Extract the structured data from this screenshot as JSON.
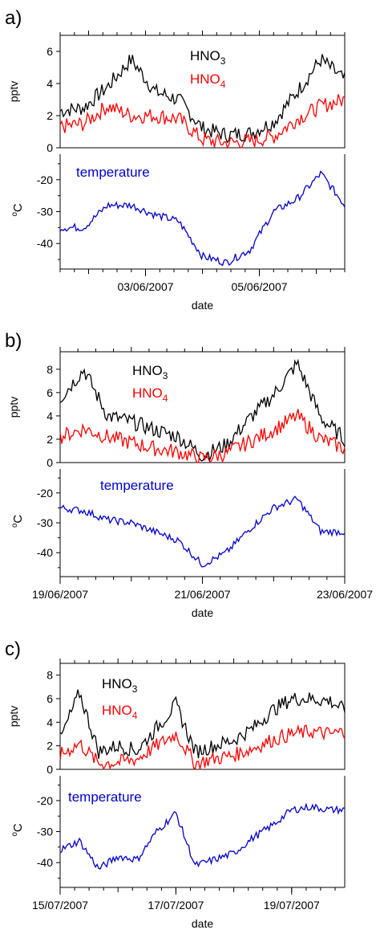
{
  "chart_data": [
    {
      "panel_label": "a)",
      "type": "line",
      "x_unit": "date",
      "xlabel": "date",
      "xlim": [
        "2007-06-01T12:00",
        "2007-06-06T12:00"
      ],
      "x_tick_labels": [
        {
          "date": "2007-06-03T00:00",
          "label": "03/06/2007"
        },
        {
          "date": "2007-06-05T00:00",
          "label": "05/06/2007"
        }
      ],
      "top": {
        "ylabel": "pptv",
        "ylim": [
          0,
          7
        ],
        "yticks": [
          0,
          2,
          4,
          6
        ],
        "series": [
          {
            "name": "HNO3",
            "label_main": "HNO",
            "label_sub": "3",
            "color": "#000000",
            "x": [
              "2007-06-01T12:00",
              "2007-06-01T22:00",
              "2007-06-02T08:00",
              "2007-06-02T18:00",
              "2007-06-03T04:00",
              "2007-06-03T14:00",
              "2007-06-04T00:00",
              "2007-06-04T10:00",
              "2007-06-04T20:00",
              "2007-06-05T06:00",
              "2007-06-05T16:00",
              "2007-06-06T02:00",
              "2007-06-06T12:00"
            ],
            "y": [
              2.3,
              2.5,
              3.8,
              5.5,
              3.5,
              3.0,
              1.2,
              0.8,
              0.9,
              1.6,
              3.5,
              5.5,
              4.2
            ]
          },
          {
            "name": "HNO4",
            "label_main": "HNO",
            "label_sub": "4",
            "color": "#ff0000",
            "x": [
              "2007-06-01T12:00",
              "2007-06-01T22:00",
              "2007-06-02T08:00",
              "2007-06-02T18:00",
              "2007-06-03T04:00",
              "2007-06-03T14:00",
              "2007-06-04T00:00",
              "2007-06-04T10:00",
              "2007-06-04T20:00",
              "2007-06-05T06:00",
              "2007-06-05T16:00",
              "2007-06-06T02:00",
              "2007-06-06T12:00"
            ],
            "y": [
              1.3,
              1.5,
              2.6,
              2.0,
              2.0,
              1.8,
              0.5,
              0.3,
              0.4,
              0.7,
              1.8,
              2.6,
              3.0
            ]
          }
        ]
      },
      "bottom": {
        "ylabel_main": "C",
        "ylabel_sup": "o",
        "ylim": [
          -48,
          -12
        ],
        "yticks": [
          -40,
          -30,
          -20
        ],
        "series": [
          {
            "name": "temperature",
            "color": "#0000cc",
            "x": [
              "2007-06-01T12:00",
              "2007-06-01T22:00",
              "2007-06-02T08:00",
              "2007-06-02T18:00",
              "2007-06-03T04:00",
              "2007-06-03T14:00",
              "2007-06-04T00:00",
              "2007-06-04T10:00",
              "2007-06-04T20:00",
              "2007-06-05T06:00",
              "2007-06-05T16:00",
              "2007-06-06T02:00",
              "2007-06-06T12:00"
            ],
            "y": [
              -35,
              -35,
              -28,
              -28,
              -31,
              -33,
              -44,
              -46,
              -42,
              -30,
              -26,
              -18,
              -28
            ]
          }
        ]
      }
    },
    {
      "panel_label": "b)",
      "type": "line",
      "x_unit": "date",
      "xlabel": "date",
      "xlim": [
        "2007-06-19T00:00",
        "2007-06-23T00:00"
      ],
      "x_tick_labels": [
        {
          "date": "2007-06-19T00:00",
          "label": "19/06/2007"
        },
        {
          "date": "2007-06-21T00:00",
          "label": "21/06/2007"
        },
        {
          "date": "2007-06-23T00:00",
          "label": "23/06/2007"
        }
      ],
      "top": {
        "ylabel": "pptv",
        "ylim": [
          0,
          9.5
        ],
        "yticks": [
          0,
          2,
          4,
          6,
          8
        ],
        "series": [
          {
            "name": "HNO3",
            "label_main": "HNO",
            "label_sub": "3",
            "color": "#000000",
            "x": [
              "2007-06-19T00:00",
              "2007-06-19T08:00",
              "2007-06-19T16:00",
              "2007-06-20T00:00",
              "2007-06-20T08:00",
              "2007-06-20T16:00",
              "2007-06-21T00:00",
              "2007-06-21T08:00",
              "2007-06-21T16:00",
              "2007-06-22T00:00",
              "2007-06-22T08:00",
              "2007-06-22T16:00",
              "2007-06-23T00:00"
            ],
            "y": [
              5.5,
              8.0,
              4.0,
              3.5,
              2.8,
              2.2,
              0.6,
              1.5,
              3.8,
              5.8,
              8.5,
              3.8,
              2.0
            ]
          },
          {
            "name": "HNO4",
            "label_main": "HNO",
            "label_sub": "4",
            "color": "#ff0000",
            "x": [
              "2007-06-19T00:00",
              "2007-06-19T08:00",
              "2007-06-19T16:00",
              "2007-06-20T00:00",
              "2007-06-20T08:00",
              "2007-06-20T16:00",
              "2007-06-21T00:00",
              "2007-06-21T08:00",
              "2007-06-21T16:00",
              "2007-06-22T00:00",
              "2007-06-22T08:00",
              "2007-06-22T16:00",
              "2007-06-23T00:00"
            ],
            "y": [
              2.2,
              2.9,
              2.2,
              1.7,
              1.2,
              0.9,
              0.3,
              0.8,
              1.8,
              2.8,
              4.0,
              2.0,
              1.2
            ]
          }
        ]
      },
      "bottom": {
        "ylabel_main": "C",
        "ylabel_sup": "o",
        "ylim": [
          -48,
          -12
        ],
        "yticks": [
          -40,
          -30,
          -20
        ],
        "series": [
          {
            "name": "temperature",
            "color": "#0000cc",
            "x": [
              "2007-06-19T00:00",
              "2007-06-19T08:00",
              "2007-06-19T16:00",
              "2007-06-20T00:00",
              "2007-06-20T08:00",
              "2007-06-20T16:00",
              "2007-06-21T00:00",
              "2007-06-21T08:00",
              "2007-06-21T16:00",
              "2007-06-22T00:00",
              "2007-06-22T08:00",
              "2007-06-22T16:00",
              "2007-06-23T00:00"
            ],
            "y": [
              -25,
              -26,
              -29,
              -30,
              -33,
              -36,
              -44,
              -40,
              -32,
              -25,
              -22,
              -33,
              -33
            ]
          }
        ]
      }
    },
    {
      "panel_label": "c)",
      "type": "line",
      "x_unit": "date",
      "xlabel": "date",
      "xlim": [
        "2007-07-15T00:00",
        "2007-07-19T22:00"
      ],
      "x_tick_labels": [
        {
          "date": "2007-07-15T00:00",
          "label": "15/07/2007"
        },
        {
          "date": "2007-07-17T00:00",
          "label": "17/07/2007"
        },
        {
          "date": "2007-07-19T00:00",
          "label": "19/07/2007"
        }
      ],
      "top": {
        "ylabel": "pptv",
        "ylim": [
          0,
          9
        ],
        "yticks": [
          0,
          2,
          4,
          6,
          8
        ],
        "series": [
          {
            "name": "HNO3",
            "label_main": "HNO",
            "label_sub": "3",
            "color": "#000000",
            "x": [
              "2007-07-15T00:00",
              "2007-07-15T08:00",
              "2007-07-15T16:00",
              "2007-07-16T00:00",
              "2007-07-16T08:00",
              "2007-07-16T16:00",
              "2007-07-17T00:00",
              "2007-07-17T08:00",
              "2007-07-17T16:00",
              "2007-07-18T00:00",
              "2007-07-18T08:00",
              "2007-07-18T16:00",
              "2007-07-19T00:00",
              "2007-07-19T08:00",
              "2007-07-19T16:00",
              "2007-07-19T22:00"
            ],
            "y": [
              2.5,
              6.5,
              1.5,
              2.0,
              1.6,
              3.5,
              5.5,
              1.5,
              2.0,
              2.5,
              3.5,
              5.0,
              6.0,
              6.0,
              5.8,
              5.0
            ]
          },
          {
            "name": "HNO4",
            "label_main": "HNO",
            "label_sub": "4",
            "color": "#ff0000",
            "x": [
              "2007-07-15T00:00",
              "2007-07-15T08:00",
              "2007-07-15T16:00",
              "2007-07-16T00:00",
              "2007-07-16T08:00",
              "2007-07-16T16:00",
              "2007-07-17T00:00",
              "2007-07-17T08:00",
              "2007-07-17T16:00",
              "2007-07-18T00:00",
              "2007-07-18T08:00",
              "2007-07-18T16:00",
              "2007-07-19T00:00",
              "2007-07-19T08:00",
              "2007-07-19T16:00",
              "2007-07-19T22:00"
            ],
            "y": [
              1.2,
              2.2,
              0.5,
              0.6,
              0.9,
              2.0,
              3.0,
              0.5,
              0.9,
              1.2,
              1.8,
              2.5,
              3.0,
              3.2,
              3.0,
              3.2
            ]
          }
        ]
      },
      "bottom": {
        "ylabel_main": "C",
        "ylabel_sup": "o",
        "ylim": [
          -48,
          -12
        ],
        "yticks": [
          -40,
          -30,
          -20
        ],
        "series": [
          {
            "name": "temperature",
            "color": "#0000cc",
            "x": [
              "2007-07-15T00:00",
              "2007-07-15T08:00",
              "2007-07-15T16:00",
              "2007-07-16T00:00",
              "2007-07-16T08:00",
              "2007-07-16T16:00",
              "2007-07-17T00:00",
              "2007-07-17T08:00",
              "2007-07-17T16:00",
              "2007-07-18T00:00",
              "2007-07-18T08:00",
              "2007-07-18T16:00",
              "2007-07-19T00:00",
              "2007-07-19T08:00",
              "2007-07-19T16:00",
              "2007-07-19T22:00"
            ],
            "y": [
              -36,
              -33,
              -42,
              -38,
              -39,
              -30,
              -24,
              -41,
              -39,
              -37,
              -32,
              -28,
              -23,
              -22,
              -23,
              -23
            ]
          }
        ]
      }
    }
  ]
}
